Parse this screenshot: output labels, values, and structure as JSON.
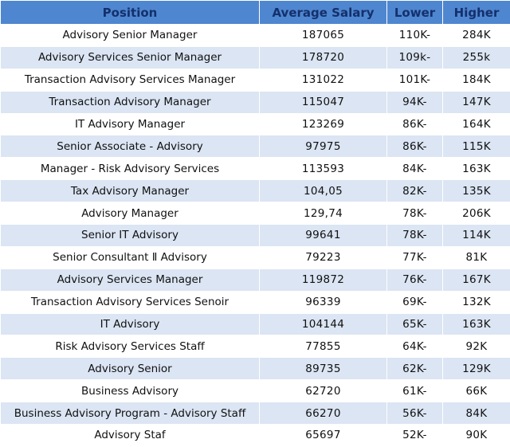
{
  "table": {
    "header": [
      "Position",
      "Average Salary",
      "Lower",
      "Higher"
    ],
    "rows": [
      [
        "Advisory Senior Manager",
        "187065",
        "110K-",
        "284K"
      ],
      [
        "Advisory Services Senior Manager",
        "178720",
        "109k-",
        "255k"
      ],
      [
        "Transaction Advisory Services Manager",
        "131022",
        "101K-",
        "184K"
      ],
      [
        "Transaction Advisory Manager",
        "115047",
        "94K-",
        "147K"
      ],
      [
        "IT Advisory Manager",
        "123269",
        "86K-",
        "164K"
      ],
      [
        "Senior Associate - Advisory",
        "97975",
        "86K-",
        "115K"
      ],
      [
        "Manager - Risk Advisory Services",
        "113593",
        "84K-",
        "163K"
      ],
      [
        "Tax Advisory Manager",
        "104,05",
        "82K-",
        "135K"
      ],
      [
        "Advisory Manager",
        "129,74",
        "78K-",
        "206K"
      ],
      [
        "Senior IT Advisory",
        "99641",
        "78K-",
        "114K"
      ],
      [
        "Senior Consultant Ⅱ Advisory",
        "79223",
        "77K-",
        "81K"
      ],
      [
        "Advisory Services Manager",
        "119872",
        "76K-",
        "167K"
      ],
      [
        "Transaction Advisory Services Senoir",
        "96339",
        "69K-",
        "132K"
      ],
      [
        "IT Advisory",
        "104144",
        "65K-",
        "163K"
      ],
      [
        "Risk Advisory Services Staff",
        "77855",
        "64K-",
        "92K"
      ],
      [
        "Advisory Senior",
        "89735",
        "62K-",
        "129K"
      ],
      [
        "Business Advisory",
        "62720",
        "61K-",
        "66K"
      ],
      [
        "Business Advisory Program - Advisory Staff",
        "66270",
        "56K-",
        "84K"
      ],
      [
        "Advisory Staf",
        "65697",
        "52K-",
        "90K"
      ]
    ]
  }
}
